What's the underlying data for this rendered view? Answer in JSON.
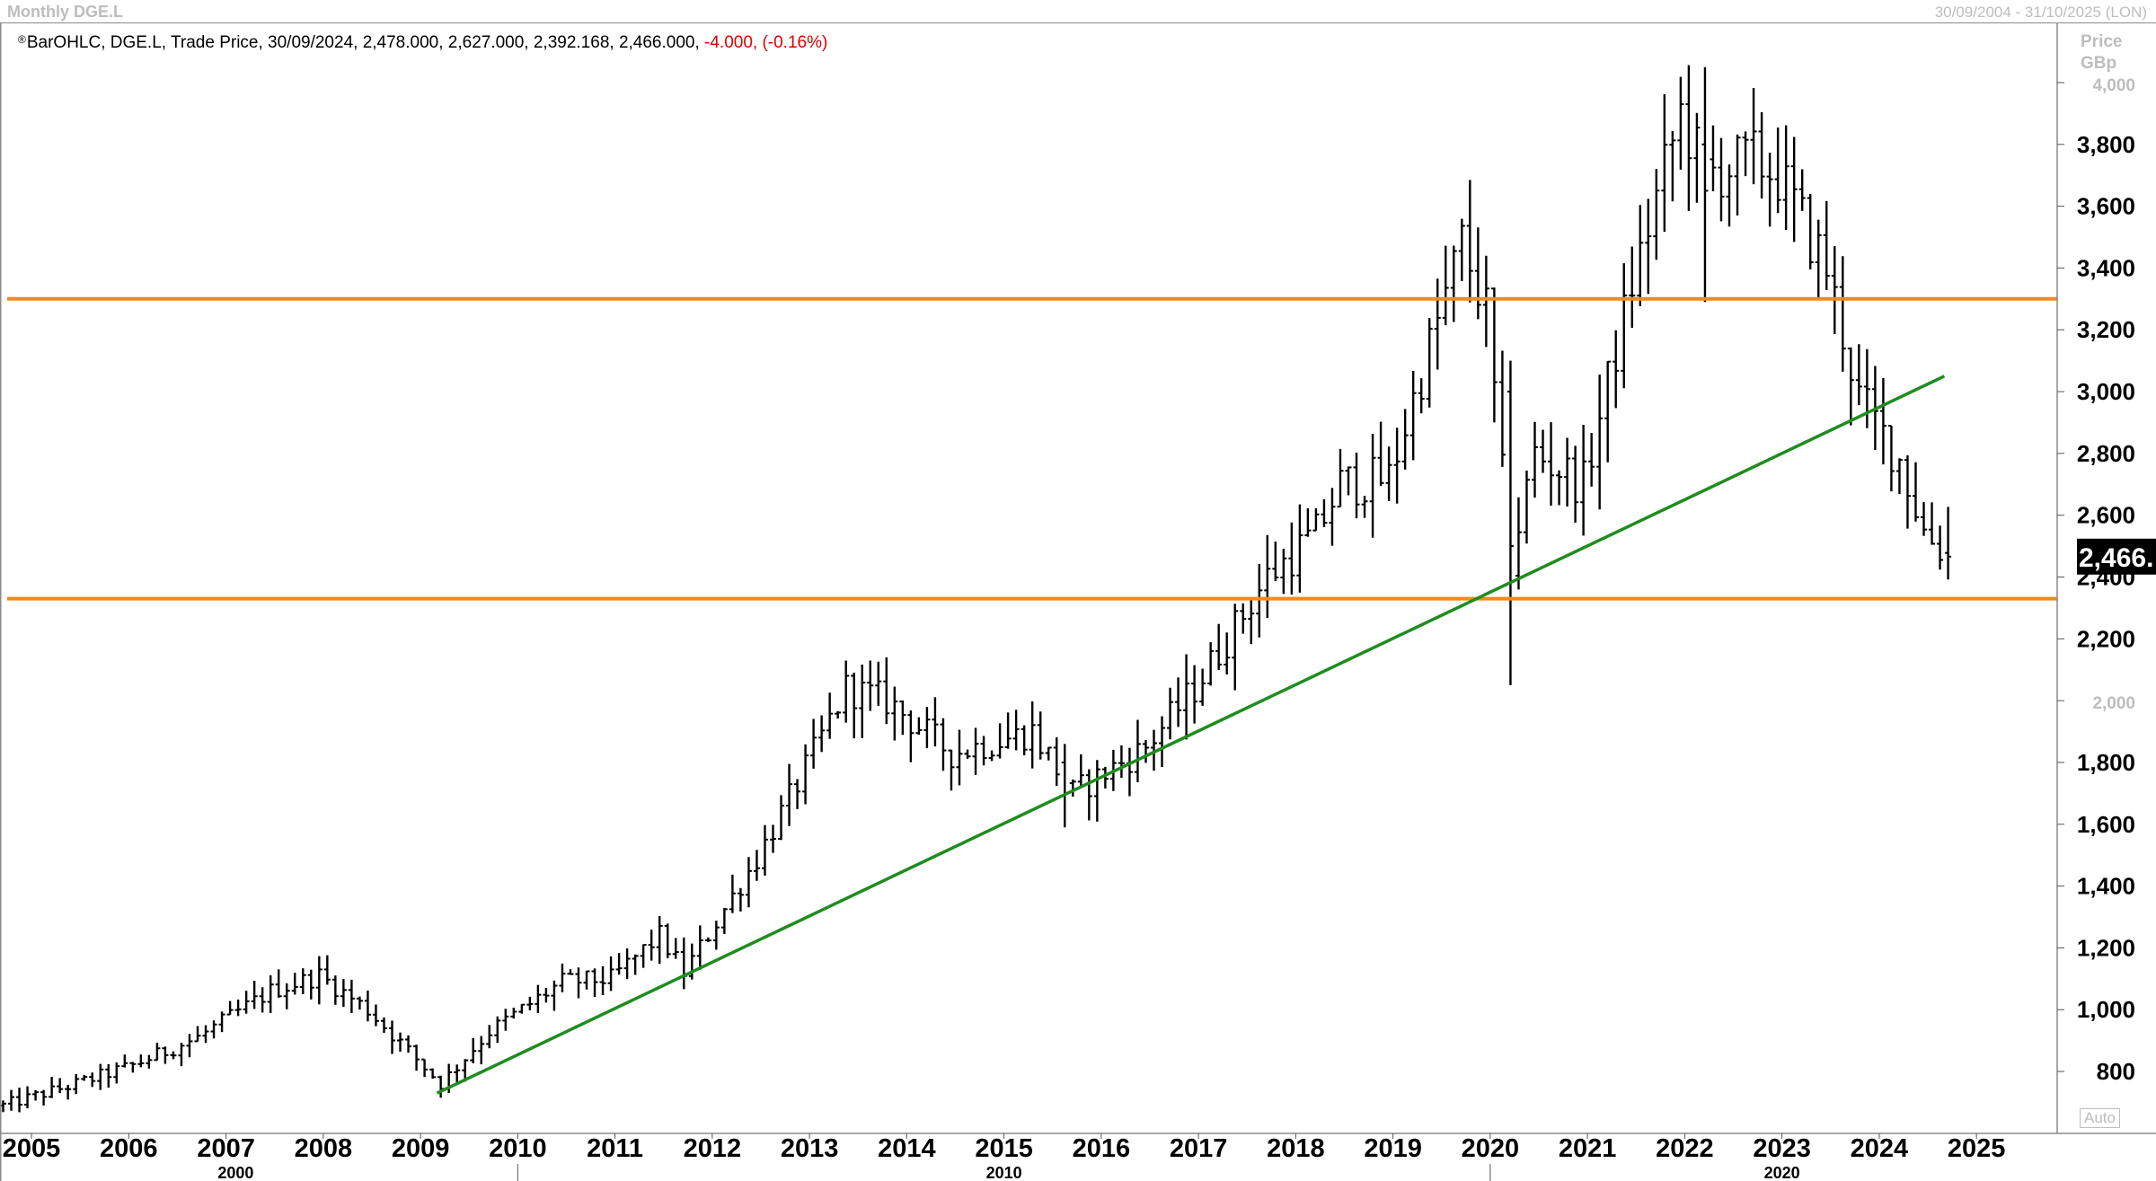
{
  "header": {
    "title": "Monthly DGE.L",
    "date_range": "30/09/2004 - 31/10/2025 (LON)"
  },
  "legend": {
    "marker": "®",
    "text": "BarOHLC, DGE.L, Trade Price, 30/09/2024, 2,478.000, 2,627.000, 2,392.168, 2,466.000,",
    "change": "-4.000, (-0.16%)"
  },
  "y_unit": [
    "Price",
    "GBp"
  ],
  "auto_label": "Auto",
  "last_price_label": "2,466.",
  "chart_data": {
    "type": "ohlc",
    "symbol": "DGE.L",
    "interval": "Monthly",
    "x_range": [
      2004.75,
      2025.83
    ],
    "ylim": [
      620,
      4180
    ],
    "grid": false,
    "y_ticks": [
      "800",
      "1,000",
      "1,200",
      "1,400",
      "1,600",
      "1,800",
      "2,000",
      "2,200",
      "2,400",
      "2,600",
      "2,800",
      "3,000",
      "3,200",
      "3,400",
      "3,600",
      "3,800",
      "4,000"
    ],
    "y_tick_values": [
      800,
      1000,
      1200,
      1400,
      1600,
      1800,
      2000,
      2200,
      2400,
      2600,
      2800,
      3000,
      3200,
      3400,
      3600,
      3800,
      4000
    ],
    "x_ticks": [
      "2005",
      "2006",
      "2007",
      "2008",
      "2009",
      "2010",
      "2011",
      "2012",
      "2013",
      "2014",
      "2015",
      "2016",
      "2017",
      "2018",
      "2019",
      "2020",
      "2021",
      "2022",
      "2023",
      "2024",
      "2025"
    ],
    "x_tick_values": [
      2005,
      2006,
      2007,
      2008,
      2009,
      2010,
      2011,
      2012,
      2013,
      2014,
      2015,
      2016,
      2017,
      2018,
      2019,
      2020,
      2021,
      2022,
      2023,
      2024,
      2025
    ],
    "decade_labels": [
      {
        "label": "2000",
        "x": 2007.1
      },
      {
        "label": "2010",
        "x": 2015.0
      },
      {
        "label": "2020",
        "x": 2023.0
      }
    ],
    "decade_dividers": [
      2010,
      2020
    ],
    "last": 2466,
    "anchors": [
      [
        "2004-09",
        690
      ],
      [
        "2005-06",
        760
      ],
      [
        "2006-01",
        820
      ],
      [
        "2006-09",
        910
      ],
      [
        "2007-06",
        1060
      ],
      [
        "2007-12",
        1110
      ],
      [
        "2008-06",
        1000
      ],
      [
        "2008-12",
        840
      ],
      [
        "2009-03",
        760
      ],
      [
        "2009-09",
        930
      ],
      [
        "2010-06",
        1090
      ],
      [
        "2010-12",
        1100
      ],
      [
        "2011-06",
        1240
      ],
      [
        "2011-09",
        1120
      ],
      [
        "2012-06",
        1490
      ],
      [
        "2012-12",
        1780
      ],
      [
        "2013-05",
        2040
      ],
      [
        "2013-10",
        2000
      ],
      [
        "2014-06",
        1830
      ],
      [
        "2015-04",
        1900
      ],
      [
        "2015-09",
        1700
      ],
      [
        "2016-06",
        1850
      ],
      [
        "2016-12",
        2040
      ],
      [
        "2017-09",
        2400
      ],
      [
        "2018-03",
        2540
      ],
      [
        "2018-06",
        2700
      ],
      [
        "2018-12",
        2720
      ],
      [
        "2019-09",
        3480
      ],
      [
        "2019-12",
        3260
      ],
      [
        "2020-03",
        2450
      ],
      [
        "2020-06",
        2800
      ],
      [
        "2020-12",
        2700
      ],
      [
        "2021-06",
        3350
      ],
      [
        "2021-12",
        3900
      ],
      [
        "2022-03",
        3700
      ],
      [
        "2022-09",
        3750
      ],
      [
        "2022-12",
        3700
      ],
      [
        "2023-06",
        3400
      ],
      [
        "2023-10",
        2980
      ],
      [
        "2024-03",
        2780
      ],
      [
        "2024-06",
        2550
      ],
      [
        "2024-09",
        2466
      ]
    ],
    "special_bars": [
      {
        "month": "2020-03",
        "open": 3000,
        "high": 3100,
        "low": 2050,
        "close": 2500
      },
      {
        "month": "2022-03",
        "open": 3800,
        "high": 4050,
        "low": 3290,
        "close": 3650
      },
      {
        "month": "2015-08",
        "open": 1800,
        "high": 1860,
        "low": 1590,
        "close": 1700
      },
      {
        "month": "2024-09",
        "open": 2478,
        "high": 2627,
        "low": 2392,
        "close": 2466
      }
    ],
    "horizontal_lines": [
      {
        "y": 3300,
        "color": "#f08a1c"
      },
      {
        "y": 2330,
        "color": "#f08a1c"
      }
    ],
    "trend_line": {
      "points": [
        [
          2009.17,
          730
        ],
        [
          2024.67,
          3050
        ]
      ],
      "color": "#1f8c1f"
    },
    "colors": {
      "bars": "#000000",
      "axis_text": "#000000",
      "axis_text_light": "#bdbdbd"
    }
  }
}
